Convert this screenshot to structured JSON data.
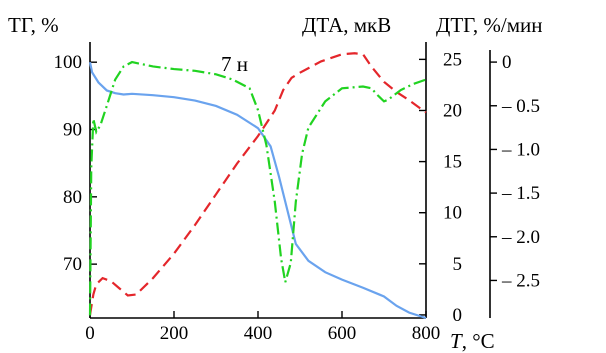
{
  "chart_data": {
    "type": "line",
    "annotation": "7 н",
    "axes": {
      "x": {
        "label_var": "T",
        "label_unit": ", °C",
        "range": [
          0,
          800
        ],
        "ticks": [
          "0",
          "200",
          "400",
          "600",
          "800"
        ],
        "tick_values": [
          0,
          200,
          400,
          600,
          800
        ]
      },
      "y_tg": {
        "label": "ТГ, %",
        "range": [
          62,
          103
        ],
        "ticks": [
          "70",
          "80",
          "90",
          "100"
        ],
        "tick_values": [
          70,
          80,
          90,
          100
        ]
      },
      "y_dta": {
        "label": "ДТА, мкВ",
        "range": [
          -0.3,
          26.7
        ],
        "ticks": [
          "0",
          "5",
          "10",
          "15",
          "20",
          "25"
        ],
        "tick_values": [
          0,
          5,
          10,
          15,
          20,
          25
        ]
      },
      "y_dtg": {
        "label": "ДТГ, %/мин",
        "range": [
          -2.93,
          0.23
        ],
        "ticks": [
          "0",
          "– 0.5",
          "– 1.0",
          "– 1.5",
          "– 2.0",
          "– 2.5"
        ],
        "tick_values": [
          0,
          -0.5,
          -1.0,
          -1.5,
          -2.0,
          -2.5
        ]
      }
    },
    "series": [
      {
        "axis": "y_tg",
        "style": "solid",
        "color": "#6aa3ee",
        "points": [
          [
            0,
            100
          ],
          [
            5,
            98.5
          ],
          [
            20,
            97
          ],
          [
            40,
            95.8
          ],
          [
            60,
            95.4
          ],
          [
            80,
            95.2
          ],
          [
            100,
            95.3
          ],
          [
            150,
            95.1
          ],
          [
            200,
            94.8
          ],
          [
            250,
            94.3
          ],
          [
            300,
            93.5
          ],
          [
            350,
            92.2
          ],
          [
            400,
            90.2
          ],
          [
            430,
            87.5
          ],
          [
            450,
            83
          ],
          [
            470,
            78
          ],
          [
            490,
            73
          ],
          [
            520,
            70.5
          ],
          [
            560,
            68.8
          ],
          [
            600,
            67.7
          ],
          [
            650,
            66.5
          ],
          [
            700,
            65.2
          ],
          [
            730,
            63.8
          ],
          [
            760,
            62.8
          ],
          [
            800,
            62
          ]
        ]
      },
      {
        "axis": "y_dta",
        "style": "dashed",
        "color": "#e4262b",
        "points": [
          [
            0,
            0
          ],
          [
            8,
            2
          ],
          [
            15,
            3
          ],
          [
            30,
            3.6
          ],
          [
            50,
            3.3
          ],
          [
            70,
            2.6
          ],
          [
            90,
            1.9
          ],
          [
            110,
            2
          ],
          [
            150,
            3.6
          ],
          [
            200,
            6
          ],
          [
            250,
            8.8
          ],
          [
            300,
            11.8
          ],
          [
            350,
            14.8
          ],
          [
            400,
            17.5
          ],
          [
            440,
            20
          ],
          [
            460,
            22
          ],
          [
            480,
            23.2
          ],
          [
            500,
            23.7
          ],
          [
            550,
            24.8
          ],
          [
            600,
            25.5
          ],
          [
            630,
            25.6
          ],
          [
            650,
            25.5
          ],
          [
            670,
            24.3
          ],
          [
            700,
            22.8
          ],
          [
            730,
            21.8
          ],
          [
            760,
            21
          ],
          [
            800,
            19.8
          ]
        ]
      },
      {
        "axis": "y_dtg",
        "style": "dashdot",
        "color": "#21d321",
        "points": [
          [
            0,
            -2.9
          ],
          [
            3,
            -1.2
          ],
          [
            8,
            -0.65
          ],
          [
            15,
            -0.8
          ],
          [
            25,
            -0.72
          ],
          [
            40,
            -0.5
          ],
          [
            60,
            -0.2
          ],
          [
            80,
            -0.05
          ],
          [
            100,
            0
          ],
          [
            150,
            -0.05
          ],
          [
            200,
            -0.08
          ],
          [
            250,
            -0.1
          ],
          [
            300,
            -0.14
          ],
          [
            340,
            -0.2
          ],
          [
            380,
            -0.3
          ],
          [
            400,
            -0.55
          ],
          [
            420,
            -0.95
          ],
          [
            440,
            -1.6
          ],
          [
            455,
            -2.25
          ],
          [
            465,
            -2.52
          ],
          [
            478,
            -2.3
          ],
          [
            490,
            -1.6
          ],
          [
            505,
            -1.05
          ],
          [
            520,
            -0.75
          ],
          [
            560,
            -0.45
          ],
          [
            600,
            -0.3
          ],
          [
            650,
            -0.28
          ],
          [
            670,
            -0.3
          ],
          [
            685,
            -0.38
          ],
          [
            700,
            -0.45
          ],
          [
            710,
            -0.43
          ],
          [
            740,
            -0.32
          ],
          [
            770,
            -0.25
          ],
          [
            800,
            -0.2
          ]
        ]
      }
    ]
  }
}
